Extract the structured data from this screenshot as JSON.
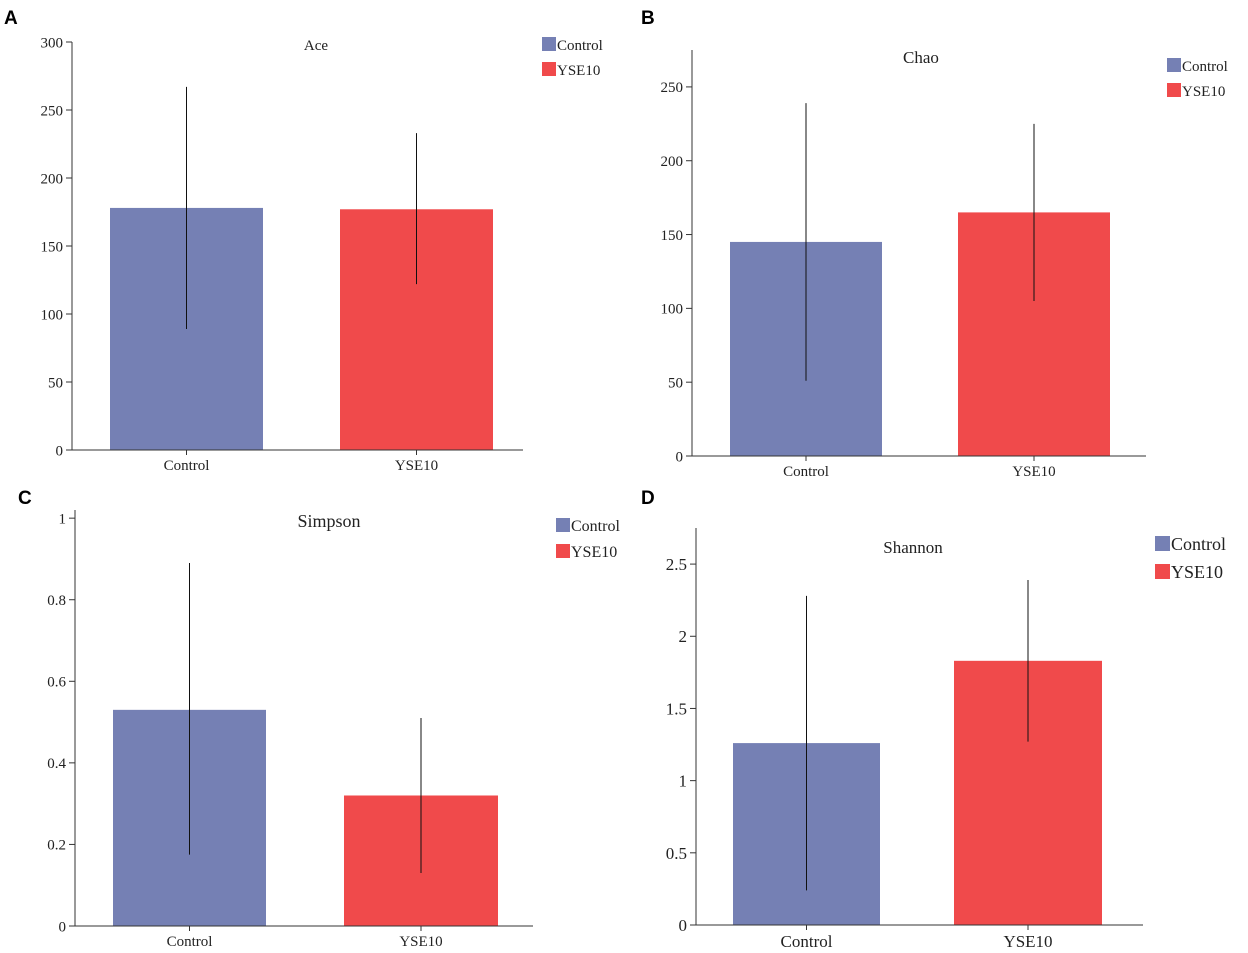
{
  "colors": {
    "control": "#7580b4",
    "yse10": "#f04a4b",
    "axis": "#333333",
    "error": "#111111"
  },
  "chart_data": [
    {
      "id": "A",
      "type": "bar",
      "title": "Ace",
      "categories": [
        "Control",
        "YSE10"
      ],
      "values": [
        178,
        177
      ],
      "error_low": [
        89,
        122
      ],
      "error_high": [
        267,
        233
      ],
      "ylim": [
        0,
        300
      ],
      "yticks": [
        0,
        50,
        100,
        150,
        200,
        250,
        300
      ],
      "ytick_labels": [
        "0",
        "50",
        "100",
        "150",
        "200",
        "250",
        "300"
      ],
      "legend": [
        "Control",
        "YSE10"
      ],
      "legend_position": "top-right",
      "xlabel": "",
      "ylabel": ""
    },
    {
      "id": "B",
      "type": "bar",
      "title": "Chao",
      "categories": [
        "Control",
        "YSE10"
      ],
      "values": [
        145,
        165
      ],
      "error_low": [
        51,
        105
      ],
      "error_high": [
        239,
        225
      ],
      "ylim": [
        0,
        275
      ],
      "yticks": [
        0,
        50,
        100,
        150,
        200,
        250
      ],
      "ytick_labels": [
        "0",
        "50",
        "100",
        "150",
        "200",
        "250"
      ],
      "legend": [
        "Control",
        "YSE10"
      ],
      "legend_position": "top-right",
      "xlabel": "",
      "ylabel": ""
    },
    {
      "id": "C",
      "type": "bar",
      "title": "Simpson",
      "categories": [
        "Control",
        "YSE10"
      ],
      "values": [
        0.53,
        0.32
      ],
      "error_low": [
        0.175,
        0.13
      ],
      "error_high": [
        0.89,
        0.51
      ],
      "ylim": [
        0,
        1.02
      ],
      "yticks": [
        0,
        0.2,
        0.4,
        0.6,
        0.8,
        1
      ],
      "ytick_labels": [
        "0",
        "0.2",
        "0.4",
        "0.6",
        "0.8",
        "1"
      ],
      "legend": [
        "Control",
        "YSE10"
      ],
      "legend_position": "top-right",
      "xlabel": "",
      "ylabel": ""
    },
    {
      "id": "D",
      "type": "bar",
      "title": "Shannon",
      "categories": [
        "Control",
        "YSE10"
      ],
      "values": [
        1.26,
        1.83
      ],
      "error_low": [
        0.24,
        1.27
      ],
      "error_high": [
        2.28,
        2.39
      ],
      "ylim": [
        0,
        2.75
      ],
      "yticks": [
        0,
        0.5,
        1,
        1.5,
        2,
        2.5
      ],
      "ytick_labels": [
        "0",
        "0.5",
        "1",
        "1.5",
        "2",
        "2.5"
      ],
      "legend": [
        "Control",
        "YSE10"
      ],
      "legend_position": "top-right",
      "xlabel": "",
      "ylabel": ""
    }
  ]
}
